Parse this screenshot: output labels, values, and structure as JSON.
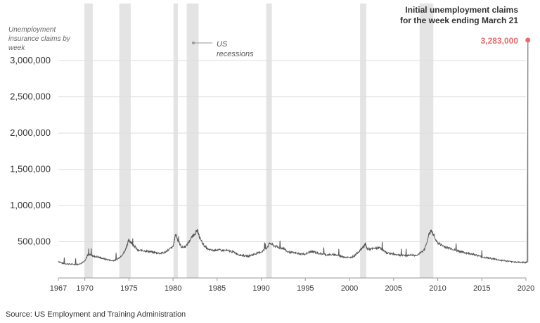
{
  "chart_data": {
    "type": "line",
    "ylabel": "Unemployment insurance claims by week",
    "xlabel": "",
    "source": "Source: US Employment and Training Administration",
    "ylim": [
      0,
      3283000
    ],
    "xlim": [
      1967,
      2020
    ],
    "y_ticks": [
      500000,
      1000000,
      1500000,
      2000000,
      2500000,
      3000000
    ],
    "y_tick_labels": [
      "500,000",
      "1,000,000",
      "1,500,000",
      "2,000,000",
      "2,500,000",
      "3,000,000"
    ],
    "x_ticks": [
      1967,
      1970,
      1975,
      1980,
      1985,
      1990,
      1995,
      2000,
      2005,
      2010,
      2015,
      2020
    ],
    "x_tick_labels": [
      "1967",
      "1970",
      "1975",
      "1980",
      "1985",
      "1990",
      "1995",
      "2000",
      "2005",
      "2010",
      "2015",
      "2020"
    ],
    "recessions_label": "US recessions",
    "recessions": [
      [
        1969.95,
        1970.9
      ],
      [
        1973.9,
        1975.2
      ],
      [
        1980.05,
        1980.55
      ],
      [
        1981.55,
        1982.9
      ],
      [
        1990.55,
        1991.2
      ],
      [
        2001.2,
        2001.9
      ],
      [
        2007.95,
        2009.5
      ]
    ],
    "series": [
      {
        "name": "Initial claims",
        "x": [
          1967.0,
          1967.5,
          1968.0,
          1968.5,
          1969.0,
          1969.5,
          1970.0,
          1970.3,
          1970.7,
          1971.0,
          1971.5,
          1972.0,
          1972.5,
          1973.0,
          1973.5,
          1974.0,
          1974.5,
          1974.8,
          1975.0,
          1975.3,
          1975.7,
          1976.0,
          1976.5,
          1977.0,
          1977.5,
          1978.0,
          1978.5,
          1979.0,
          1979.5,
          1980.0,
          1980.3,
          1980.6,
          1981.0,
          1981.5,
          1982.0,
          1982.5,
          1982.8,
          1983.0,
          1983.5,
          1984.0,
          1984.5,
          1985.0,
          1985.5,
          1986.0,
          1986.5,
          1987.0,
          1987.5,
          1988.0,
          1988.5,
          1989.0,
          1989.5,
          1990.0,
          1990.5,
          1991.0,
          1991.5,
          1992.0,
          1992.5,
          1993.0,
          1993.5,
          1994.0,
          1994.5,
          1995.0,
          1995.5,
          1996.0,
          1996.5,
          1997.0,
          1997.5,
          1998.0,
          1998.5,
          1999.0,
          1999.5,
          2000.0,
          2000.5,
          2001.0,
          2001.5,
          2001.8,
          2002.0,
          2002.5,
          2003.0,
          2003.5,
          2004.0,
          2004.5,
          2005.0,
          2005.5,
          2006.0,
          2006.5,
          2007.0,
          2007.5,
          2008.0,
          2008.5,
          2009.0,
          2009.25,
          2009.5,
          2010.0,
          2010.5,
          2011.0,
          2011.5,
          2012.0,
          2012.5,
          2013.0,
          2013.5,
          2014.0,
          2014.5,
          2015.0,
          2015.5,
          2016.0,
          2016.5,
          2017.0,
          2017.5,
          2018.0,
          2018.5,
          2019.0,
          2019.5,
          2019.9,
          2020.15,
          2020.22
        ],
        "values": [
          230000,
          200000,
          195000,
          190000,
          185000,
          195000,
          240000,
          310000,
          320000,
          300000,
          290000,
          270000,
          255000,
          240000,
          245000,
          290000,
          360000,
          460000,
          530000,
          480000,
          430000,
          380000,
          380000,
          370000,
          360000,
          350000,
          340000,
          350000,
          390000,
          430000,
          610000,
          500000,
          420000,
          440000,
          540000,
          620000,
          650000,
          560000,
          450000,
          390000,
          380000,
          390000,
          380000,
          380000,
          370000,
          350000,
          320000,
          310000,
          300000,
          320000,
          340000,
          360000,
          400000,
          480000,
          440000,
          420000,
          410000,
          360000,
          350000,
          340000,
          330000,
          330000,
          360000,
          360000,
          340000,
          330000,
          320000,
          320000,
          320000,
          300000,
          290000,
          280000,
          300000,
          360000,
          420000,
          470000,
          400000,
          400000,
          410000,
          420000,
          360000,
          340000,
          330000,
          320000,
          310000,
          310000,
          320000,
          310000,
          340000,
          390000,
          600000,
          650000,
          600000,
          480000,
          450000,
          420000,
          410000,
          380000,
          370000,
          350000,
          340000,
          330000,
          310000,
          290000,
          280000,
          270000,
          260000,
          245000,
          240000,
          230000,
          220000,
          220000,
          215000,
          215000,
          220000,
          3283000
        ]
      }
    ],
    "callout": {
      "text": "Initial unemployment claims for the week ending March 21",
      "value_label": "3,283,000",
      "x": 2020.22,
      "y": 3283000
    },
    "colors": {
      "line": "#555555",
      "highlight": "#e56b6f",
      "recession": "#e4e4e4",
      "grid": "#dddddd"
    }
  }
}
